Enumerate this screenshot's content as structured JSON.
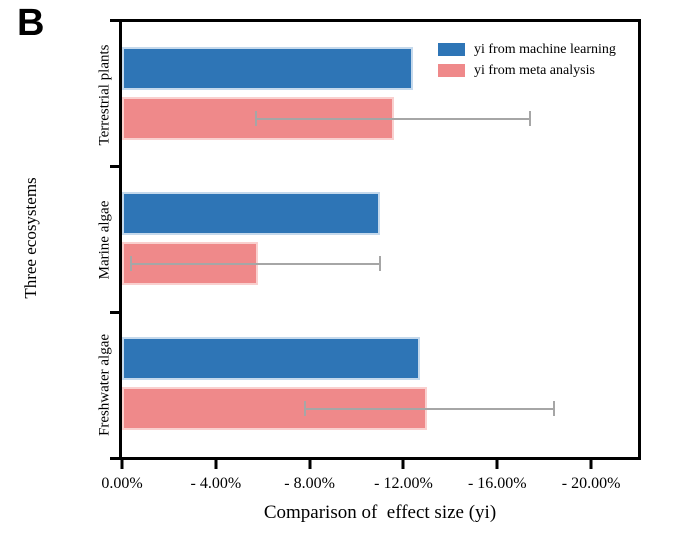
{
  "figure": {
    "panel_label": "B",
    "background": "#ffffff"
  },
  "chart_data": {
    "type": "bar",
    "orientation": "horizontal",
    "title": "",
    "xlabel": "Comparison of  effect size (yi)",
    "ylabel": "Three ecosystems",
    "categories": [
      "Terrestrial plants",
      "Marine algae",
      "Freshwater algae"
    ],
    "series": [
      {
        "name": "yi from machine learning",
        "color": "#2E75B6",
        "edge_color": "#C5D9EC",
        "values": [
          -12.4,
          -11.0,
          -12.7
        ]
      },
      {
        "name": "yi from meta analysis",
        "color": "#EF898A",
        "edge_color": "#F9D0CF",
        "values": [
          -11.6,
          -5.8,
          -13.0
        ],
        "error_low": [
          -5.7,
          -0.4,
          -7.8
        ],
        "error_high": [
          -17.4,
          -11.0,
          -18.4
        ]
      }
    ],
    "x_ticks": [
      {
        "value": 0,
        "label": "0.00%"
      },
      {
        "value": -4,
        "label": "- 4.00%"
      },
      {
        "value": -8,
        "label": "- 8.00%"
      },
      {
        "value": -12,
        "label": "- 12.00%"
      },
      {
        "value": -16,
        "label": "- 16.00%"
      },
      {
        "value": -20,
        "label": "- 20.00%"
      }
    ],
    "xlim": [
      0,
      -22
    ],
    "grid": false,
    "legend_position": "top-right-inside",
    "error_bar_color": "#A6A6A6"
  }
}
